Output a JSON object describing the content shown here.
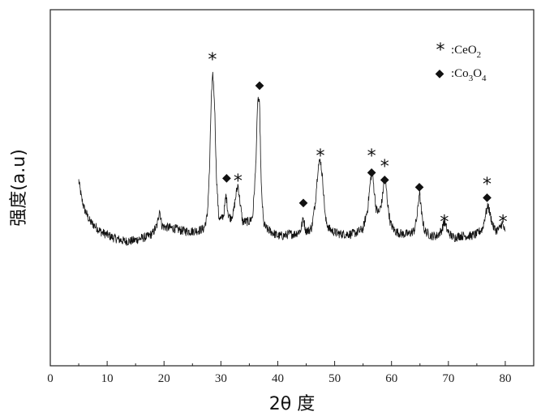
{
  "chart_data": {
    "type": "line",
    "title": "",
    "xlabel": "2θ 度",
    "ylabel": "强度(a.u)",
    "xlim": [
      0,
      85
    ],
    "ylim": [
      0,
      100
    ],
    "xticks": [
      0,
      10,
      20,
      30,
      40,
      50,
      60,
      70,
      80
    ],
    "grid": false,
    "legend_position": "top-right",
    "legend": [
      {
        "symbol": "*",
        "label_main": ":CeO",
        "label_sub": "2",
        "label_rest": ""
      },
      {
        "symbol": "◆",
        "label_main": ":Co",
        "label_sub": "3",
        "label_rest": "O",
        "label_sub2": "4"
      }
    ],
    "series": [
      {
        "color": "#111111",
        "x": [
          5.0,
          5.5,
          6.0,
          7.0,
          8.0,
          9.0,
          10.0,
          11.0,
          12.0,
          13.0,
          14.0,
          15.0,
          16.0,
          17.0,
          18.0,
          18.8,
          19.2,
          19.6,
          20.0,
          21.0,
          22.0,
          23.0,
          24.0,
          25.0,
          26.0,
          27.0,
          27.6,
          28.0,
          28.3,
          28.6,
          28.9,
          29.2,
          29.6,
          30.0,
          30.5,
          30.9,
          31.3,
          31.7,
          32.2,
          32.7,
          33.0,
          33.4,
          33.8,
          34.3,
          35.0,
          35.6,
          36.1,
          36.5,
          36.8,
          37.1,
          37.5,
          38.0,
          39.0,
          40.0,
          41.0,
          42.0,
          43.0,
          44.0,
          44.5,
          44.9,
          45.5,
          46.0,
          46.6,
          47.1,
          47.5,
          47.9,
          48.4,
          49.0,
          50.0,
          51.0,
          52.0,
          53.0,
          54.0,
          55.0,
          55.8,
          56.3,
          56.6,
          56.9,
          57.3,
          57.8,
          58.3,
          58.7,
          59.0,
          59.4,
          59.8,
          60.5,
          61.0,
          62.0,
          63.0,
          64.0,
          64.5,
          64.9,
          65.3,
          65.8,
          66.5,
          67.0,
          68.0,
          68.8,
          69.3,
          69.8,
          70.5,
          71.0,
          72.0,
          73.0,
          74.0,
          75.0,
          76.0,
          76.6,
          77.0,
          77.4,
          77.9,
          78.4,
          79.0,
          79.4,
          79.8,
          80.0
        ],
        "y": [
          52.0,
          47.0,
          44.0,
          40.5,
          39.0,
          37.5,
          36.8,
          36.0,
          35.5,
          35.0,
          35.0,
          35.3,
          35.8,
          36.2,
          37.2,
          39.5,
          44.0,
          39.5,
          39.0,
          38.8,
          38.5,
          38.0,
          37.8,
          37.8,
          38.0,
          38.5,
          42.0,
          55.0,
          75.0,
          82.0,
          73.0,
          54.0,
          42.0,
          41.0,
          42.5,
          48.0,
          42.5,
          41.5,
          43.0,
          48.5,
          51.0,
          45.5,
          40.5,
          40.5,
          40.5,
          42.0,
          55.0,
          75.5,
          73.0,
          50.0,
          40.0,
          38.5,
          37.5,
          36.5,
          36.5,
          37.0,
          37.0,
          38.0,
          41.5,
          38.0,
          38.0,
          39.0,
          46.0,
          56.0,
          58.0,
          52.0,
          41.0,
          38.5,
          37.5,
          37.0,
          37.0,
          37.0,
          37.5,
          38.5,
          44.0,
          52.0,
          55.0,
          50.0,
          44.0,
          43.0,
          46.0,
          52.0,
          51.0,
          44.5,
          40.0,
          38.0,
          37.5,
          37.0,
          37.0,
          38.0,
          42.0,
          49.0,
          42.5,
          38.0,
          37.0,
          36.5,
          36.5,
          38.0,
          40.5,
          38.0,
          36.5,
          36.0,
          36.5,
          36.5,
          36.5,
          37.0,
          38.5,
          43.0,
          45.0,
          42.0,
          39.0,
          38.0,
          38.5,
          40.0,
          38.5,
          37.0
        ]
      }
    ],
    "annotations": [
      {
        "symbol": "*",
        "x": 28.5,
        "y": 87
      },
      {
        "symbol": "◆",
        "x": 31.0,
        "y": 53
      },
      {
        "symbol": "*",
        "x": 33.0,
        "y": 53
      },
      {
        "symbol": "◆",
        "x": 36.8,
        "y": 79
      },
      {
        "symbol": "◆",
        "x": 44.5,
        "y": 46
      },
      {
        "symbol": "*",
        "x": 47.5,
        "y": 60
      },
      {
        "symbol": "*",
        "x": 56.5,
        "y": 60
      },
      {
        "symbol": "◆",
        "x": 56.5,
        "y": 54.5
      },
      {
        "symbol": "*",
        "x": 58.8,
        "y": 57
      },
      {
        "symbol": "◆",
        "x": 58.8,
        "y": 52.5
      },
      {
        "symbol": "◆",
        "x": 64.9,
        "y": 50.5
      },
      {
        "symbol": "*",
        "x": 69.3,
        "y": 41.5
      },
      {
        "symbol": "*",
        "x": 76.8,
        "y": 52
      },
      {
        "symbol": "◆",
        "x": 76.8,
        "y": 47.5
      },
      {
        "symbol": "*",
        "x": 79.6,
        "y": 41.5
      }
    ]
  }
}
